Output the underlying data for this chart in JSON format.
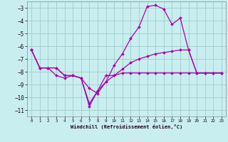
{
  "xlabel": "Windchill (Refroidissement éolien,°C)",
  "background_color": "#c8eef0",
  "grid_color": "#a0ccc8",
  "line_color": "#aa00aa",
  "xlim": [
    -0.5,
    23.5
  ],
  "ylim": [
    -11.5,
    -2.5
  ],
  "yticks": [
    -11,
    -10,
    -9,
    -8,
    -7,
    -6,
    -5,
    -4,
    -3
  ],
  "xticks": [
    0,
    1,
    2,
    3,
    4,
    5,
    6,
    7,
    8,
    9,
    10,
    11,
    12,
    13,
    14,
    15,
    16,
    17,
    18,
    19,
    20,
    21,
    22,
    23
  ],
  "series": [
    {
      "x": [
        0,
        1,
        2,
        3,
        4,
        5,
        6,
        7,
        8,
        9,
        10,
        11,
        12,
        13,
        14,
        15,
        16,
        17,
        18,
        19,
        20,
        21,
        22,
        23
      ],
      "y": [
        -6.3,
        -7.7,
        -7.7,
        -8.3,
        -8.5,
        -8.3,
        -8.5,
        -10.5,
        -9.5,
        -8.3,
        -8.3,
        -8.1,
        -8.1,
        -8.1,
        -8.1,
        -8.1,
        -8.1,
        -8.1,
        -8.1,
        -8.1,
        -8.1,
        -8.1,
        -8.1,
        -8.1
      ]
    },
    {
      "x": [
        0,
        1,
        2,
        3,
        4,
        5,
        6,
        7,
        8,
        9,
        10,
        11,
        12,
        13,
        14,
        15,
        16,
        17,
        18,
        19,
        20,
        21,
        22,
        23
      ],
      "y": [
        -6.3,
        -7.7,
        -7.7,
        -7.7,
        -8.3,
        -8.3,
        -8.5,
        -10.7,
        -9.5,
        -8.8,
        -7.5,
        -6.6,
        -5.4,
        -4.5,
        -2.9,
        -2.8,
        -3.1,
        -4.3,
        -3.8,
        -6.3,
        -8.1,
        -8.1,
        -8.1,
        -8.1
      ]
    },
    {
      "x": [
        0,
        1,
        2,
        3,
        4,
        5,
        6,
        7,
        8,
        9,
        10,
        11,
        12,
        13,
        14,
        15,
        16,
        17,
        18,
        19,
        20,
        21,
        22,
        23
      ],
      "y": [
        -6.3,
        -7.7,
        -7.7,
        -7.7,
        -8.3,
        -8.3,
        -8.5,
        -9.3,
        -9.7,
        -8.8,
        -8.3,
        -7.8,
        -7.3,
        -7.0,
        -6.8,
        -6.6,
        -6.5,
        -6.4,
        -6.3,
        -6.3,
        -8.1,
        -8.1,
        -8.1,
        -8.1
      ]
    }
  ]
}
